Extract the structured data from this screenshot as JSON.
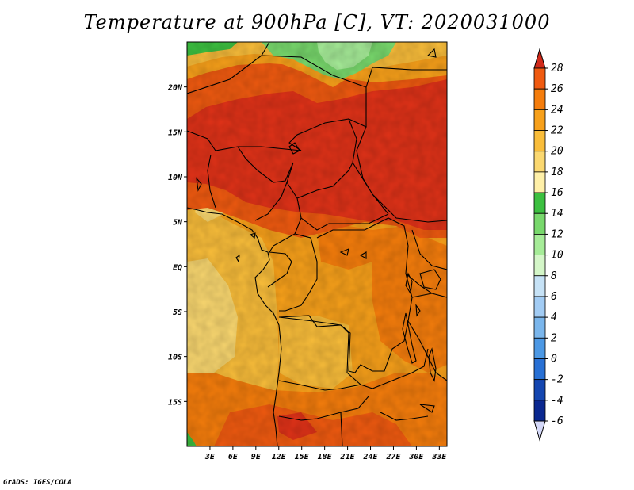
{
  "title": "Temperature at 900hPa [C], VT: 2020031000",
  "credit": "GrADS: IGES/COLA",
  "map": {
    "lon_range": [
      0,
      34
    ],
    "lat_range": [
      -20,
      25
    ],
    "lat_ticks": [
      {
        "value": 20,
        "label": "20N"
      },
      {
        "value": 15,
        "label": "15N"
      },
      {
        "value": 10,
        "label": "10N"
      },
      {
        "value": 5,
        "label": "5N"
      },
      {
        "value": 0,
        "label": "EQ"
      },
      {
        "value": -5,
        "label": "5S"
      },
      {
        "value": -10,
        "label": "10S"
      },
      {
        "value": -15,
        "label": "15S"
      }
    ],
    "lon_ticks": [
      {
        "value": 3,
        "label": "3E"
      },
      {
        "value": 6,
        "label": "6E"
      },
      {
        "value": 9,
        "label": "9E"
      },
      {
        "value": 12,
        "label": "12E"
      },
      {
        "value": 15,
        "label": "15E"
      },
      {
        "value": 18,
        "label": "18E"
      },
      {
        "value": 21,
        "label": "21E"
      },
      {
        "value": 24,
        "label": "24E"
      },
      {
        "value": 27,
        "label": "27E"
      },
      {
        "value": 30,
        "label": "30E"
      },
      {
        "value": 33,
        "label": "33E"
      }
    ]
  },
  "colorbar": {
    "levels": [
      "28",
      "26",
      "24",
      "22",
      "20",
      "18",
      "16",
      "14",
      "12",
      "10",
      "8",
      "6",
      "4",
      "2",
      "0",
      "-2",
      "-4",
      "-6"
    ],
    "colors": [
      "#e03218",
      "#f05a10",
      "#f57d0c",
      "#f7a01a",
      "#f9bd3a",
      "#fbd870",
      "#fff0a8",
      "#3cc040",
      "#78d86c",
      "#a6ec98",
      "#d4f6c8",
      "#c6e2f6",
      "#a2ccf4",
      "#7ab6ec",
      "#4c98e4",
      "#2870d4",
      "#1446b0",
      "#0a2890",
      "#101060"
    ],
    "top_arrow_color": "#d02a1a",
    "bottom_arrow_color": "#d4d8f8"
  }
}
